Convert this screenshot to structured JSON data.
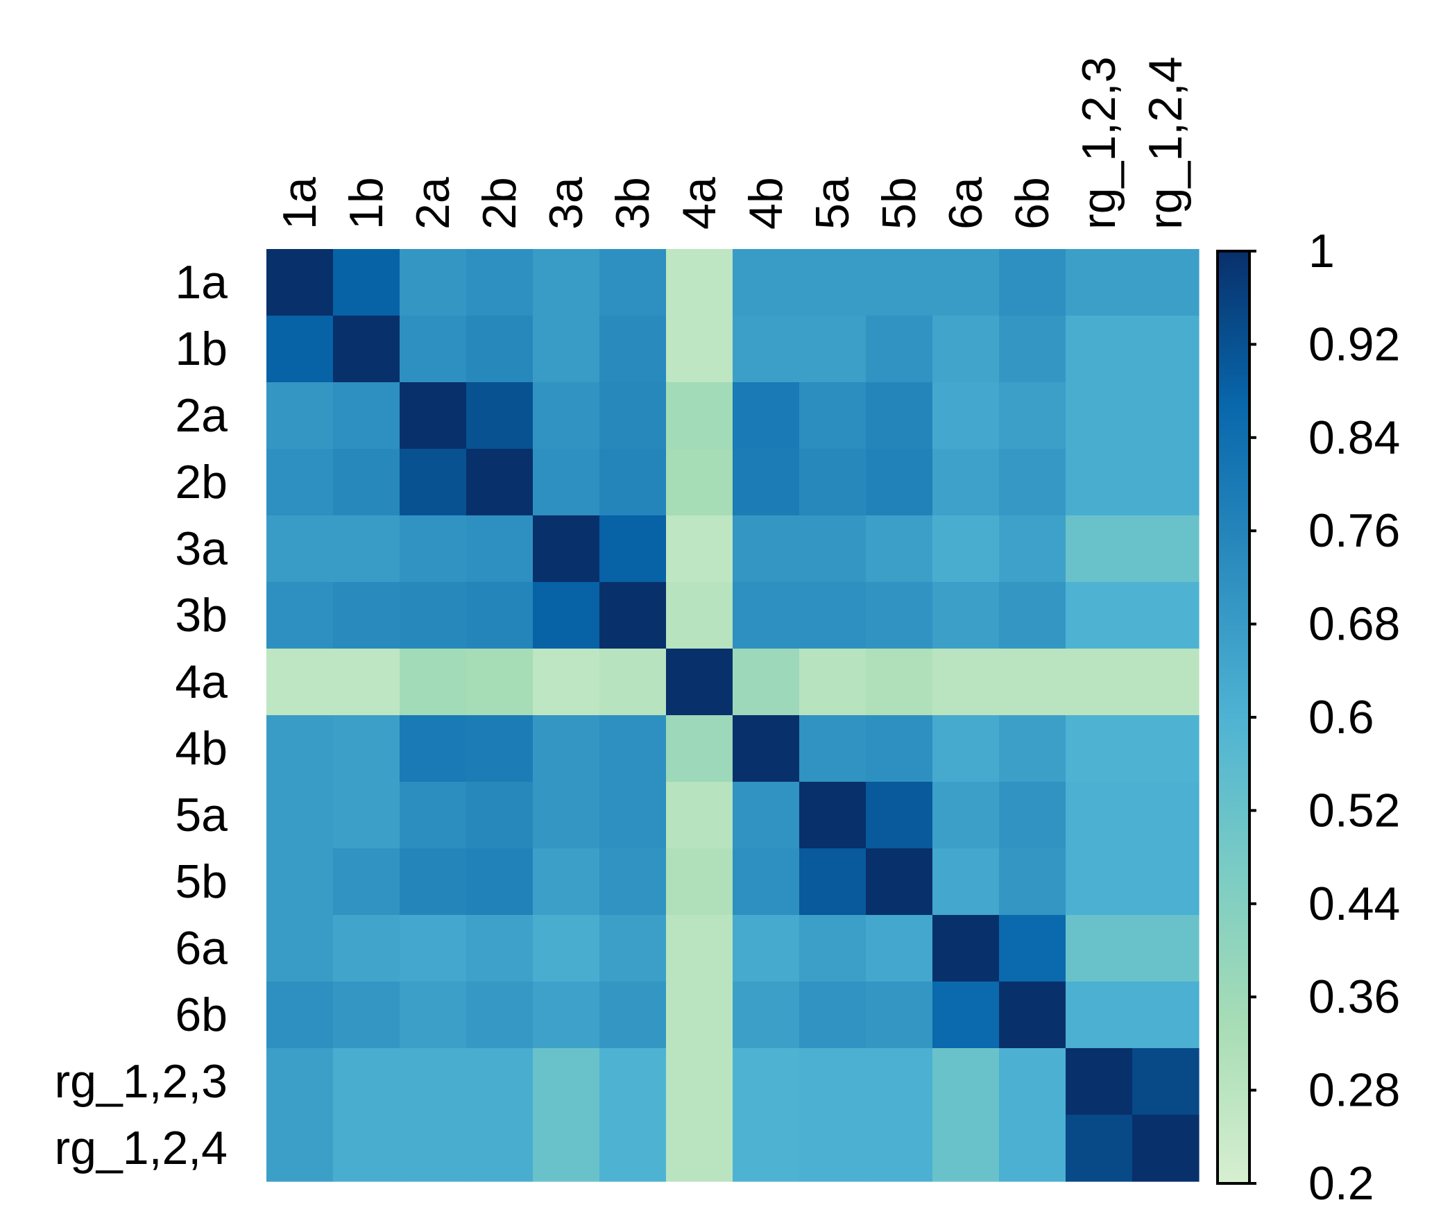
{
  "chart_data": {
    "type": "heatmap",
    "title": "",
    "xlabel": "",
    "ylabel": "",
    "row_labels": [
      "1a",
      "1b",
      "2a",
      "2b",
      "3a",
      "3b",
      "4a",
      "4b",
      "5a",
      "5b",
      "6a",
      "6b",
      "rg_1,2,3",
      "rg_1,2,4"
    ],
    "col_labels": [
      "1a",
      "1b",
      "2a",
      "2b",
      "3a",
      "3b",
      "4a",
      "4b",
      "5a",
      "5b",
      "6a",
      "6b",
      "rg_1,2,3",
      "rg_1,2,4"
    ],
    "values": [
      [
        1.0,
        0.88,
        0.7,
        0.72,
        0.68,
        0.72,
        0.27,
        0.68,
        0.68,
        0.68,
        0.68,
        0.72,
        0.67,
        0.67
      ],
      [
        0.88,
        1.0,
        0.72,
        0.75,
        0.68,
        0.74,
        0.27,
        0.67,
        0.67,
        0.71,
        0.65,
        0.7,
        0.62,
        0.62
      ],
      [
        0.7,
        0.72,
        1.0,
        0.92,
        0.71,
        0.75,
        0.35,
        0.8,
        0.73,
        0.76,
        0.64,
        0.67,
        0.62,
        0.62
      ],
      [
        0.72,
        0.75,
        0.92,
        1.0,
        0.72,
        0.76,
        0.34,
        0.79,
        0.75,
        0.77,
        0.66,
        0.69,
        0.62,
        0.62
      ],
      [
        0.68,
        0.68,
        0.71,
        0.72,
        1.0,
        0.88,
        0.27,
        0.7,
        0.7,
        0.67,
        0.62,
        0.66,
        0.52,
        0.52
      ],
      [
        0.72,
        0.74,
        0.75,
        0.76,
        0.88,
        1.0,
        0.29,
        0.72,
        0.72,
        0.71,
        0.67,
        0.7,
        0.6,
        0.6
      ],
      [
        0.27,
        0.27,
        0.35,
        0.34,
        0.27,
        0.29,
        1.0,
        0.37,
        0.29,
        0.31,
        0.28,
        0.28,
        0.28,
        0.28
      ],
      [
        0.68,
        0.67,
        0.8,
        0.79,
        0.7,
        0.72,
        0.37,
        1.0,
        0.71,
        0.72,
        0.63,
        0.67,
        0.6,
        0.6
      ],
      [
        0.68,
        0.67,
        0.73,
        0.75,
        0.7,
        0.72,
        0.29,
        0.71,
        1.0,
        0.9,
        0.67,
        0.71,
        0.61,
        0.61
      ],
      [
        0.68,
        0.71,
        0.76,
        0.77,
        0.67,
        0.71,
        0.31,
        0.72,
        0.9,
        1.0,
        0.64,
        0.7,
        0.61,
        0.61
      ],
      [
        0.68,
        0.65,
        0.64,
        0.66,
        0.62,
        0.67,
        0.28,
        0.63,
        0.67,
        0.64,
        1.0,
        0.86,
        0.52,
        0.52
      ],
      [
        0.72,
        0.7,
        0.67,
        0.69,
        0.66,
        0.7,
        0.28,
        0.67,
        0.71,
        0.7,
        0.86,
        1.0,
        0.61,
        0.61
      ],
      [
        0.67,
        0.62,
        0.62,
        0.62,
        0.52,
        0.6,
        0.28,
        0.6,
        0.61,
        0.61,
        0.52,
        0.61,
        1.0,
        0.94
      ],
      [
        0.67,
        0.62,
        0.62,
        0.62,
        0.52,
        0.6,
        0.28,
        0.6,
        0.61,
        0.61,
        0.52,
        0.61,
        0.94,
        1.0
      ]
    ],
    "colorbar": {
      "min": 0.2,
      "max": 1,
      "ticks": [
        1,
        0.92,
        0.84,
        0.76,
        0.68,
        0.6,
        0.52,
        0.44,
        0.36,
        0.28,
        0.2
      ],
      "tick_labels": [
        "1",
        "0.92",
        "0.84",
        "0.76",
        "0.68",
        "0.6",
        "0.52",
        "0.44",
        "0.36",
        "0.28",
        "0.2"
      ],
      "colors_low_to_high": [
        "#d6efd0",
        "#a8ddb5",
        "#7bccc4",
        "#4eb3d3",
        "#2b8cbe",
        "#0868ac",
        "#08306b"
      ]
    },
    "grid": false,
    "legend_position": "right"
  }
}
